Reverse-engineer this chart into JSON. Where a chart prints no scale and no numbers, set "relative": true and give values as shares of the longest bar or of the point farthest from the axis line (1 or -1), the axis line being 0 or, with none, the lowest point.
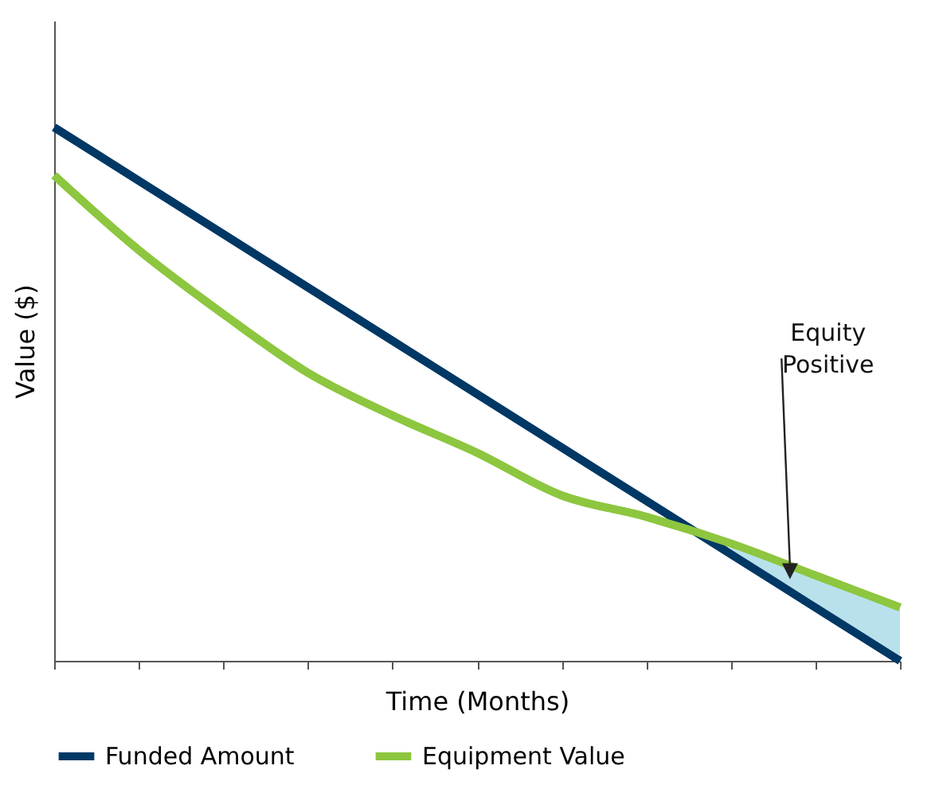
{
  "chart_data": {
    "type": "line",
    "relative": true,
    "xlabel": "Time (Months)",
    "ylabel": "Value ($)",
    "categories": [
      null,
      null,
      null,
      null,
      null,
      null,
      null,
      null,
      null,
      null,
      null
    ],
    "series": [
      {
        "name": "Funded Amount",
        "color": "#003865",
        "values": [
          1,
          0.9,
          0.8,
          0.7,
          0.6,
          0.5,
          0.4,
          0.3,
          0.2,
          0.1,
          0
        ],
        "lower": [
          null,
          null,
          null,
          null,
          null,
          null,
          null,
          null,
          0.2,
          0.1,
          0
        ],
        "upper": [
          null,
          null,
          null,
          null,
          null,
          null,
          null,
          null,
          0.22,
          0.16,
          0.1
        ]
      },
      {
        "name": "Equipment Value",
        "color": "#8dc63f",
        "values": [
          0.91,
          0.77,
          0.65,
          0.54,
          0.46,
          0.39,
          0.31,
          0.27,
          0.22,
          0.16,
          0.1
        ]
      }
    ],
    "annotations": [
      "Equity Positive"
    ],
    "legend": "bottom"
  }
}
